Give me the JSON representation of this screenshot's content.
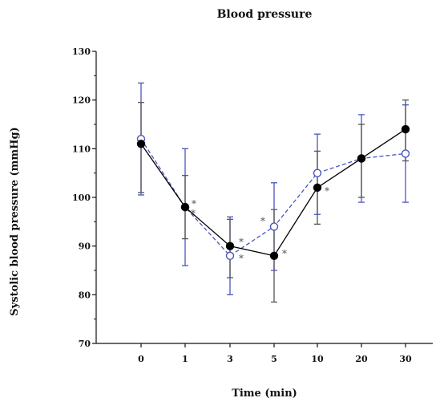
{
  "chart_data": {
    "type": "line",
    "title": "Blood pressure",
    "xlabel": "Time (min)",
    "ylabel": "Systolic blood pressure (mmHg)",
    "ylim": [
      70,
      130
    ],
    "yticks": [
      "70",
      "80",
      "90",
      "100",
      "110",
      "120",
      "130"
    ],
    "categories": [
      "0",
      "1",
      "3",
      "5",
      "10",
      "20",
      "30"
    ],
    "grid": false,
    "series": [
      {
        "marker": "filled-circle",
        "line_style": "solid",
        "color": "#000000",
        "errorbar_color": "#555555",
        "values": [
          111,
          98,
          90,
          88,
          102,
          108,
          114
        ],
        "error_upper": [
          119.5,
          104.5,
          95.5,
          97.5,
          109.5,
          115,
          120
        ],
        "error_lower": [
          101,
          91.5,
          83.5,
          78.5,
          94.5,
          100,
          107.5
        ],
        "significance": [
          "",
          "*",
          "*",
          "*",
          "*",
          "",
          ""
        ]
      },
      {
        "marker": "open-circle",
        "line_style": "dashed",
        "color": "#4a55c0",
        "errorbar_color": "#4a55c0",
        "values": [
          112,
          98,
          88,
          94,
          105,
          108,
          109
        ],
        "error_upper": [
          123.5,
          110,
          96,
          103,
          113,
          117,
          119
        ],
        "error_lower": [
          100.5,
          86,
          80,
          85,
          96.5,
          99,
          99
        ],
        "significance": [
          "",
          "*",
          "*",
          "*",
          "",
          "",
          ""
        ]
      }
    ]
  }
}
